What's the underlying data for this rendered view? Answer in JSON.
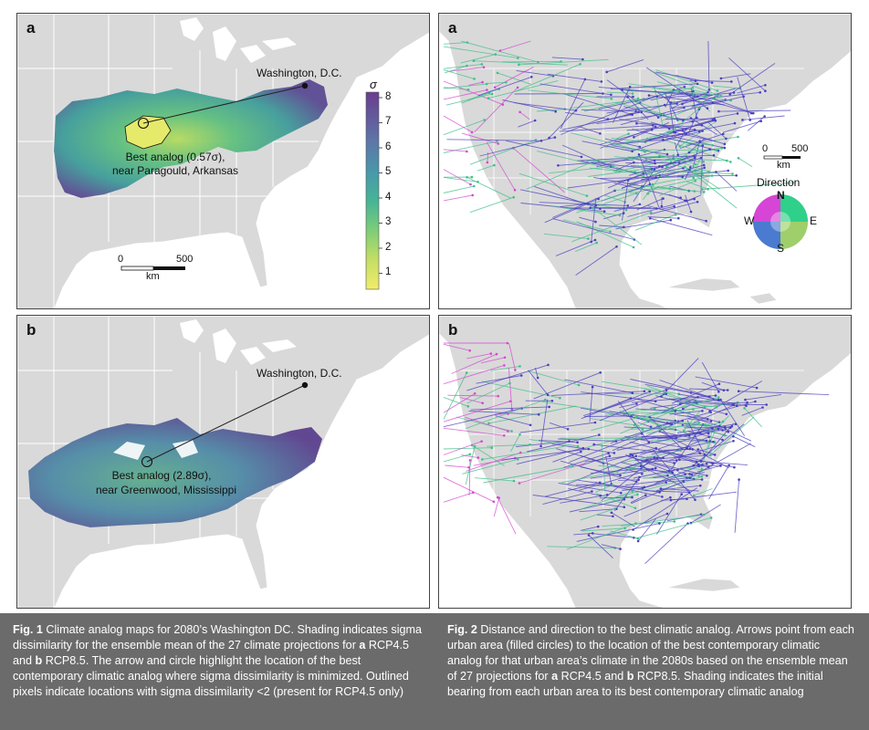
{
  "fig1": {
    "panel_a": {
      "label": "a",
      "city_label": "Washington, D.C.",
      "analog_line1": "Best analog (0.57σ),",
      "analog_line2": "near Paragould, Arkansas",
      "scalebar": {
        "start": "0",
        "end": "500",
        "unit": "km"
      }
    },
    "panel_b": {
      "label": "b",
      "city_label": "Washington, D.C.",
      "analog_line1": "Best analog (2.89σ),",
      "analog_line2": "near Greenwood, Mississippi"
    },
    "colorbar": {
      "title": "σ",
      "ticks": [
        "8",
        "7",
        "6",
        "5",
        "4",
        "3",
        "2",
        "1"
      ],
      "colors": [
        "#6a3d8f",
        "#7a5fa0",
        "#6f8fb0",
        "#5aa9b4",
        "#53b9a0",
        "#7ccd78",
        "#c4de64",
        "#f1ec6a"
      ]
    }
  },
  "fig2": {
    "panel_a": {
      "label": "a",
      "scalebar": {
        "start": "0",
        "end": "500",
        "unit": "km"
      },
      "direction_legend": {
        "title": "Direction",
        "n": "N",
        "e": "E",
        "s": "S",
        "w": "W"
      }
    },
    "panel_b": {
      "label": "b"
    }
  },
  "captions": {
    "fig1": {
      "title": "Fig. 1",
      "text1": " Climate analog maps for 2080’s Washington DC. Shading indicates sigma dissimilarity for the ensemble mean of the 27 climate projections for ",
      "a": "a",
      "text2": " RCP4.5 and ",
      "b": "b",
      "text3": " RCP8.5. The arrow and circle highlight the location of the best contemporary climatic analog where sigma dissimilarity is minimized. Outlined pixels indicate locations with sigma dissimilarity <2 (present for RCP4.5 only)"
    },
    "fig2": {
      "title": "Fig. 2",
      "text1": " Distance and direction to the best climatic analog. Arrows point from each urban area (filled circles) to the location of the best contemporary climatic analog for that urban area’s climate in the 2080s based on the ensemble mean of 27 projections for ",
      "a": "a",
      "text2": " RCP4.5 and ",
      "b": "b",
      "text3": " RCP8.5. Shading indicates the initial bearing from each urban area to its best contemporary climatic analog"
    }
  },
  "colors": {
    "land": "#d9d9d9",
    "border": "#ffffff",
    "arrow_blue": "#4a3fc0",
    "arrow_green": "#3fbf8a",
    "arrow_magenta": "#d447d0",
    "sigma_low": "#f1ec6a",
    "sigma_mid": "#3fae93",
    "sigma_high": "#6a3d8f"
  }
}
